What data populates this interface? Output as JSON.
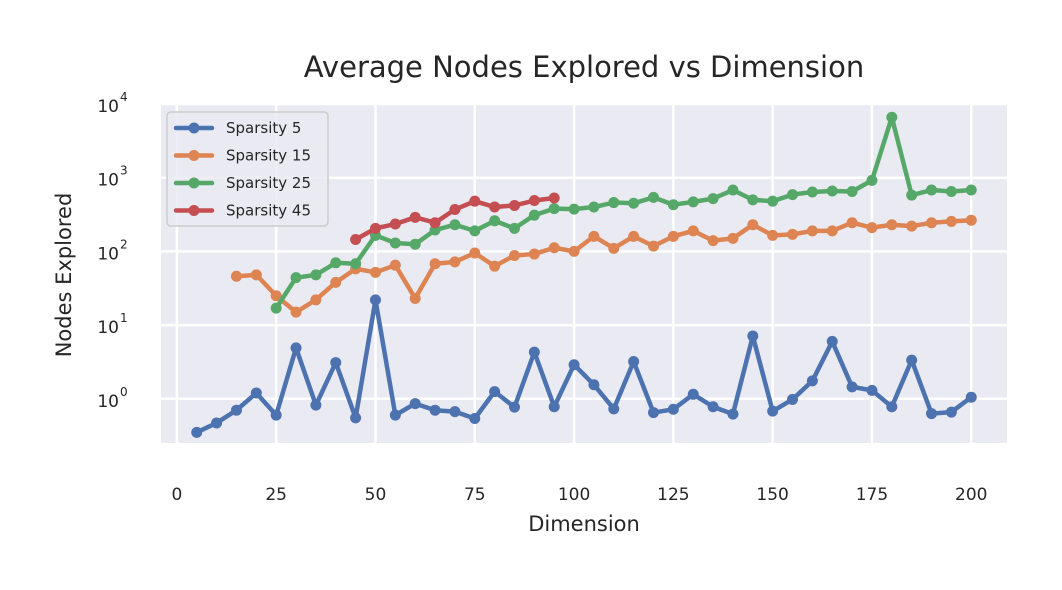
{
  "chart_data": {
    "type": "line",
    "title": "Average Nodes Explored vs Dimension",
    "xlabel": "Dimension",
    "ylabel": "Nodes Explored",
    "xlim": [
      -4,
      209
    ],
    "ylim_log10": [
      -0.6,
      4
    ],
    "yscale": "log",
    "grid": true,
    "legend_position": "top-left",
    "x_ticks": [
      0,
      25,
      50,
      75,
      100,
      125,
      150,
      175,
      200
    ],
    "y_ticks": [
      {
        "base": "10",
        "exp": "0",
        "value": 1
      },
      {
        "base": "10",
        "exp": "1",
        "value": 10
      },
      {
        "base": "10",
        "exp": "2",
        "value": 100
      },
      {
        "base": "10",
        "exp": "3",
        "value": 1000
      },
      {
        "base": "10",
        "exp": "4",
        "value": 10000
      }
    ],
    "series": [
      {
        "name": "Sparsity 5",
        "color": "#4c72b0",
        "x": [
          5,
          10,
          15,
          20,
          25,
          30,
          35,
          40,
          45,
          50,
          55,
          60,
          65,
          70,
          75,
          80,
          85,
          90,
          95,
          100,
          105,
          110,
          115,
          120,
          125,
          130,
          135,
          140,
          145,
          150,
          155,
          160,
          165,
          170,
          175,
          180,
          185,
          190,
          195,
          200
        ],
        "y": [
          0.35,
          0.47,
          0.7,
          1.2,
          0.6,
          4.9,
          0.82,
          3.1,
          0.55,
          22,
          0.6,
          0.86,
          0.7,
          0.67,
          0.54,
          1.25,
          0.77,
          4.3,
          0.78,
          2.9,
          1.55,
          0.73,
          3.2,
          0.65,
          0.72,
          1.15,
          0.78,
          0.62,
          7.1,
          0.68,
          0.98,
          1.75,
          6,
          1.45,
          1.3,
          0.78,
          3.35,
          0.63,
          0.66,
          1.05
        ]
      },
      {
        "name": "Sparsity 15",
        "color": "#dd8452",
        "x": [
          15,
          20,
          25,
          30,
          35,
          40,
          45,
          50,
          55,
          60,
          65,
          70,
          75,
          80,
          85,
          90,
          95,
          100,
          105,
          110,
          115,
          120,
          125,
          130,
          135,
          140,
          145,
          150,
          155,
          160,
          165,
          170,
          175,
          180,
          185,
          190,
          195,
          200
        ],
        "y": [
          46,
          48,
          25,
          15,
          22,
          38,
          58,
          52,
          65,
          23,
          68,
          72,
          95,
          63,
          88,
          92,
          112,
          100,
          160,
          110,
          160,
          118,
          160,
          190,
          140,
          150,
          230,
          165,
          170,
          190,
          190,
          245,
          210,
          230,
          220,
          245,
          255,
          265
        ]
      },
      {
        "name": "Sparsity 25",
        "color": "#55a868",
        "x": [
          25,
          30,
          35,
          40,
          45,
          50,
          55,
          60,
          65,
          70,
          75,
          80,
          85,
          90,
          95,
          100,
          105,
          110,
          115,
          120,
          125,
          130,
          135,
          140,
          145,
          150,
          155,
          160,
          165,
          170,
          175,
          180,
          185,
          190,
          195,
          200
        ],
        "y": [
          17,
          44,
          48,
          70,
          68,
          165,
          130,
          125,
          195,
          230,
          190,
          260,
          205,
          310,
          380,
          375,
          400,
          460,
          450,
          540,
          430,
          470,
          520,
          680,
          500,
          480,
          590,
          640,
          660,
          650,
          920,
          6600,
          580,
          680,
          650,
          680
        ]
      },
      {
        "name": "Sparsity 45",
        "color": "#c44e52",
        "x": [
          45,
          50,
          55,
          60,
          65,
          70,
          75,
          80,
          85,
          90,
          95
        ],
        "y": [
          145,
          205,
          235,
          290,
          245,
          370,
          480,
          400,
          420,
          490,
          530
        ]
      }
    ]
  }
}
